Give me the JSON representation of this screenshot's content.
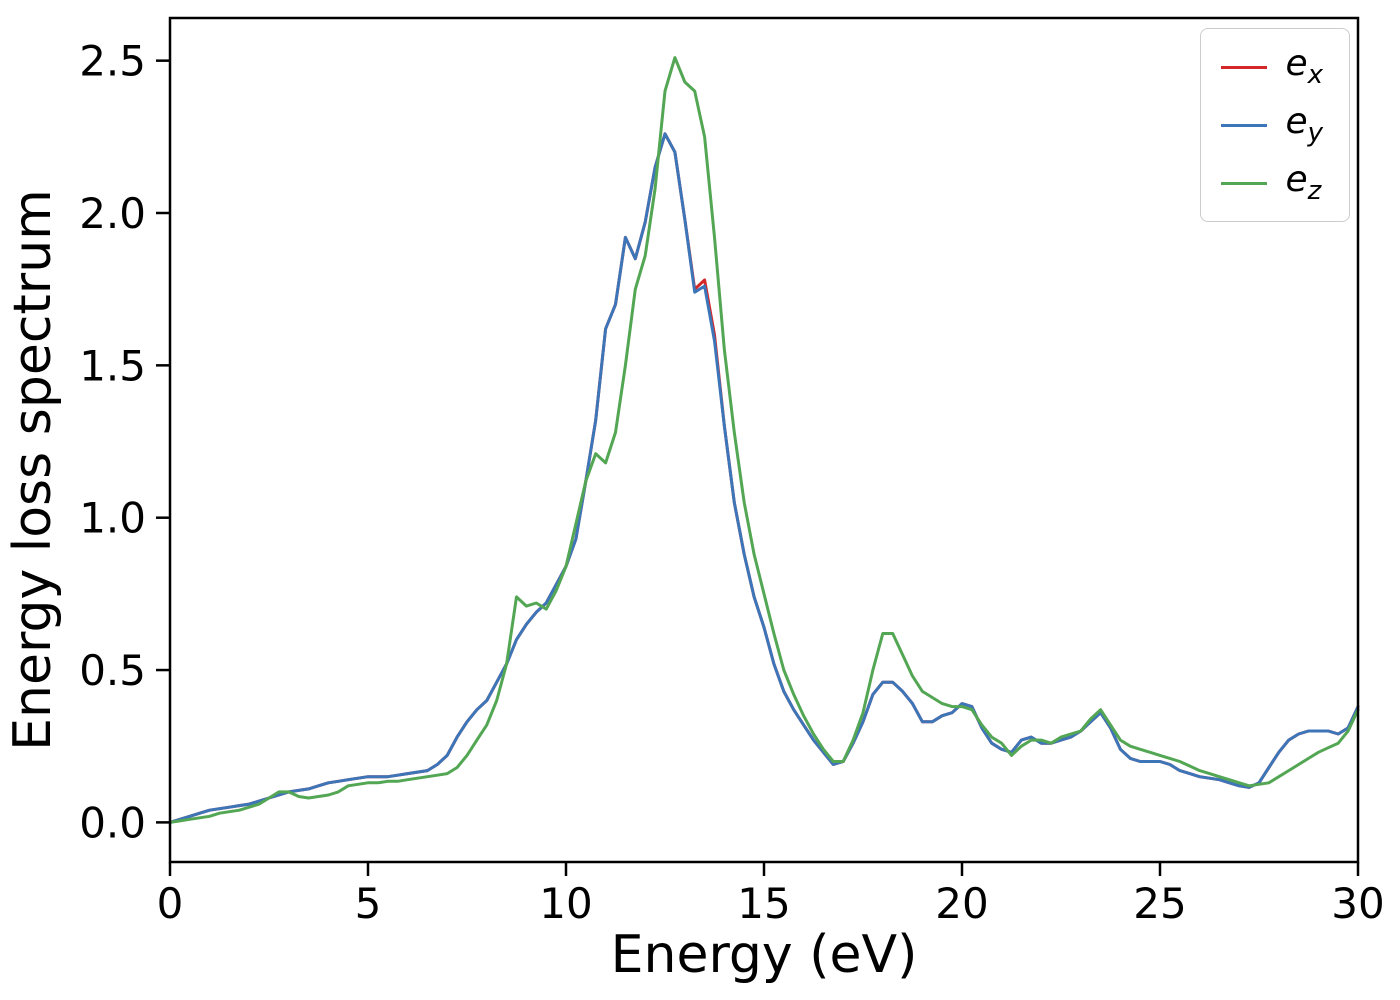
{
  "chart_data": {
    "type": "line",
    "title": "",
    "xlabel": "Energy (eV)",
    "ylabel": "Energy loss spectrum",
    "xlim": [
      0,
      30
    ],
    "ylim": [
      -0.13,
      2.64
    ],
    "grid": false,
    "legend_position": "upper right",
    "xticks": [
      0,
      5,
      10,
      15,
      20,
      25,
      30
    ],
    "xtick_labels": [
      "0",
      "5",
      "10",
      "15",
      "20",
      "25",
      "30"
    ],
    "yticks": [
      0.0,
      0.5,
      1.0,
      1.5,
      2.0,
      2.5
    ],
    "ytick_labels": [
      "0.0",
      "0.5",
      "1.0",
      "1.5",
      "2.0",
      "2.5"
    ],
    "x_start": 0,
    "x_step": 0.25,
    "series": [
      {
        "name": "e_x",
        "color": "#d62728",
        "values": [
          0.0,
          0.01,
          0.02,
          0.03,
          0.04,
          0.045,
          0.05,
          0.055,
          0.06,
          0.07,
          0.08,
          0.09,
          0.1,
          0.105,
          0.11,
          0.12,
          0.13,
          0.135,
          0.14,
          0.145,
          0.15,
          0.15,
          0.15,
          0.155,
          0.16,
          0.165,
          0.17,
          0.19,
          0.22,
          0.28,
          0.33,
          0.37,
          0.4,
          0.46,
          0.52,
          0.6,
          0.65,
          0.69,
          0.72,
          0.78,
          0.84,
          0.93,
          1.12,
          1.32,
          1.62,
          1.7,
          1.92,
          1.85,
          1.97,
          2.15,
          2.26,
          2.2,
          1.98,
          1.75,
          1.78,
          1.6,
          1.3,
          1.05,
          0.88,
          0.74,
          0.64,
          0.52,
          0.43,
          0.37,
          0.32,
          0.27,
          0.23,
          0.19,
          0.2,
          0.26,
          0.33,
          0.42,
          0.46,
          0.46,
          0.43,
          0.39,
          0.33,
          0.33,
          0.35,
          0.36,
          0.39,
          0.38,
          0.31,
          0.26,
          0.24,
          0.23,
          0.27,
          0.28,
          0.26,
          0.26,
          0.27,
          0.28,
          0.3,
          0.33,
          0.36,
          0.31,
          0.24,
          0.21,
          0.2,
          0.2,
          0.2,
          0.19,
          0.17,
          0.16,
          0.15,
          0.145,
          0.14,
          0.13,
          0.12,
          0.115,
          0.13,
          0.18,
          0.23,
          0.27,
          0.29,
          0.3,
          0.3,
          0.3,
          0.29,
          0.31,
          0.38
        ]
      },
      {
        "name": "e_y",
        "color": "#3d76b8",
        "values": [
          0.0,
          0.01,
          0.02,
          0.03,
          0.04,
          0.045,
          0.05,
          0.055,
          0.06,
          0.07,
          0.08,
          0.09,
          0.1,
          0.105,
          0.11,
          0.12,
          0.13,
          0.135,
          0.14,
          0.145,
          0.15,
          0.15,
          0.15,
          0.155,
          0.16,
          0.165,
          0.17,
          0.19,
          0.22,
          0.28,
          0.33,
          0.37,
          0.4,
          0.46,
          0.52,
          0.6,
          0.65,
          0.69,
          0.72,
          0.78,
          0.84,
          0.93,
          1.12,
          1.32,
          1.62,
          1.7,
          1.92,
          1.85,
          1.97,
          2.15,
          2.26,
          2.2,
          1.98,
          1.74,
          1.76,
          1.58,
          1.3,
          1.05,
          0.88,
          0.74,
          0.64,
          0.52,
          0.43,
          0.37,
          0.32,
          0.27,
          0.23,
          0.19,
          0.2,
          0.26,
          0.33,
          0.42,
          0.46,
          0.46,
          0.43,
          0.39,
          0.33,
          0.33,
          0.35,
          0.36,
          0.39,
          0.38,
          0.31,
          0.26,
          0.24,
          0.23,
          0.27,
          0.28,
          0.26,
          0.26,
          0.27,
          0.28,
          0.3,
          0.33,
          0.36,
          0.31,
          0.24,
          0.21,
          0.2,
          0.2,
          0.2,
          0.19,
          0.17,
          0.16,
          0.15,
          0.145,
          0.14,
          0.13,
          0.12,
          0.115,
          0.13,
          0.18,
          0.23,
          0.27,
          0.29,
          0.3,
          0.3,
          0.3,
          0.29,
          0.31,
          0.38
        ]
      },
      {
        "name": "e_z",
        "color": "#53a653",
        "values": [
          0.0,
          0.005,
          0.01,
          0.015,
          0.02,
          0.03,
          0.035,
          0.04,
          0.05,
          0.06,
          0.08,
          0.1,
          0.1,
          0.085,
          0.08,
          0.085,
          0.09,
          0.1,
          0.12,
          0.125,
          0.13,
          0.13,
          0.135,
          0.135,
          0.14,
          0.145,
          0.15,
          0.155,
          0.16,
          0.18,
          0.22,
          0.27,
          0.32,
          0.4,
          0.52,
          0.74,
          0.71,
          0.72,
          0.7,
          0.76,
          0.84,
          0.98,
          1.12,
          1.21,
          1.18,
          1.28,
          1.5,
          1.75,
          1.86,
          2.08,
          2.4,
          2.51,
          2.43,
          2.4,
          2.25,
          1.92,
          1.55,
          1.28,
          1.05,
          0.88,
          0.75,
          0.62,
          0.5,
          0.42,
          0.35,
          0.29,
          0.24,
          0.2,
          0.2,
          0.27,
          0.36,
          0.5,
          0.62,
          0.62,
          0.55,
          0.48,
          0.43,
          0.41,
          0.39,
          0.38,
          0.38,
          0.37,
          0.32,
          0.28,
          0.26,
          0.22,
          0.25,
          0.27,
          0.27,
          0.26,
          0.28,
          0.29,
          0.3,
          0.34,
          0.37,
          0.32,
          0.27,
          0.25,
          0.24,
          0.23,
          0.22,
          0.21,
          0.2,
          0.185,
          0.17,
          0.16,
          0.15,
          0.14,
          0.13,
          0.12,
          0.125,
          0.13,
          0.15,
          0.17,
          0.19,
          0.21,
          0.23,
          0.245,
          0.26,
          0.3,
          0.37
        ]
      }
    ]
  }
}
